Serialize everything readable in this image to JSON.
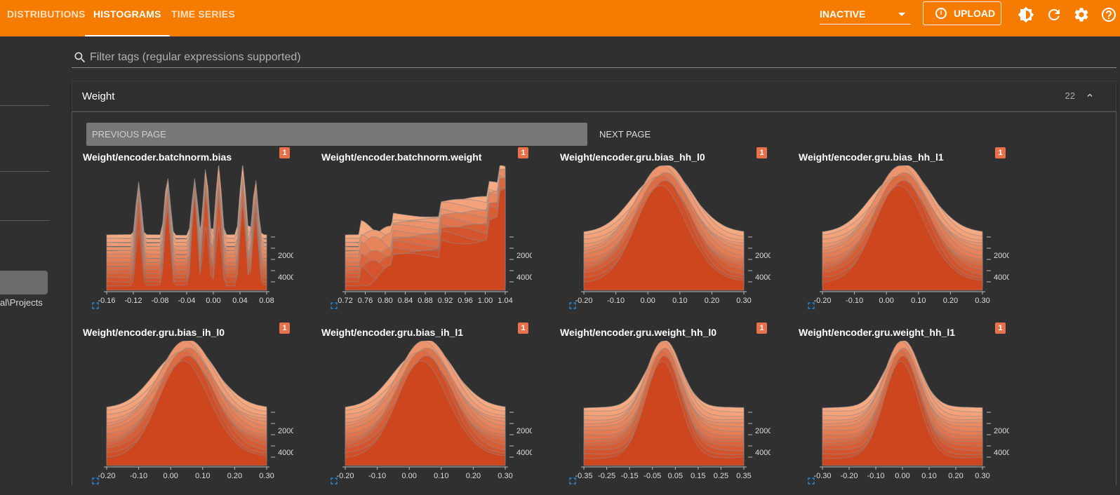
{
  "header": {
    "tabs": [
      {
        "label": "DISTRIBUTIONS",
        "active": false
      },
      {
        "label": "HISTOGRAMS",
        "active": true
      },
      {
        "label": "TIME SERIES",
        "active": false
      }
    ],
    "run_select": "INACTIVE",
    "upload_label": "UPLOAD",
    "icons": [
      "theme-toggle-icon",
      "refresh-icon",
      "settings-icon",
      "help-icon"
    ],
    "accent_color": "#f57c00"
  },
  "sidebar": {
    "path_text": "al\\Projects"
  },
  "filter": {
    "placeholder": "Filter tags (regular expressions supported)"
  },
  "panel": {
    "title": "Weight",
    "count": "22"
  },
  "pagination": {
    "prev_label": "PREVIOUS PAGE",
    "next_label": "NEXT PAGE"
  },
  "chart_data": [
    {
      "type": "area",
      "title": "Weight/encoder.batchnorm.bias",
      "badge": "1",
      "x_ticks": [
        "-0.16",
        "-0.12",
        "-0.08",
        "-0.04",
        "0.00",
        "0.04",
        "0.08"
      ],
      "y_ticks": [
        "2000",
        "4000"
      ],
      "shape": "multi-peak"
    },
    {
      "type": "area",
      "title": "Weight/encoder.batchnorm.weight",
      "badge": "1",
      "x_ticks": [
        "0.72",
        "0.76",
        "0.80",
        "0.84",
        "0.88",
        "0.92",
        "0.96",
        "1.00",
        "1.04"
      ],
      "y_ticks": [
        "2000",
        "4000"
      ],
      "shape": "step"
    },
    {
      "type": "area",
      "title": "Weight/encoder.gru.bias_hh_l0",
      "badge": "1",
      "x_ticks": [
        "-0.20",
        "-0.10",
        "0.00",
        "0.10",
        "0.20",
        "0.30"
      ],
      "y_ticks": [
        "2000",
        "4000"
      ],
      "shape": "bell"
    },
    {
      "type": "area",
      "title": "Weight/encoder.gru.bias_hh_l1",
      "badge": "1",
      "x_ticks": [
        "-0.20",
        "-0.10",
        "0.00",
        "0.10",
        "0.20",
        "0.30"
      ],
      "y_ticks": [
        "2000",
        "4000"
      ],
      "shape": "bell"
    },
    {
      "type": "area",
      "title": "Weight/encoder.gru.bias_ih_l0",
      "badge": "1",
      "x_ticks": [
        "-0.20",
        "-0.10",
        "0.00",
        "0.10",
        "0.20",
        "0.30"
      ],
      "y_ticks": [
        "2000",
        "4000"
      ],
      "shape": "bell"
    },
    {
      "type": "area",
      "title": "Weight/encoder.gru.bias_ih_l1",
      "badge": "1",
      "x_ticks": [
        "-0.20",
        "-0.10",
        "0.00",
        "0.10",
        "0.20",
        "0.30"
      ],
      "y_ticks": [
        "2000",
        "4000"
      ],
      "shape": "bell"
    },
    {
      "type": "area",
      "title": "Weight/encoder.gru.weight_hh_l0",
      "badge": "1",
      "x_ticks": [
        "-0.35",
        "-0.25",
        "-0.15",
        "-0.05",
        "0.05",
        "0.15",
        "0.25",
        "0.35"
      ],
      "y_ticks": [
        "2000",
        "4000"
      ],
      "shape": "narrow-bell"
    },
    {
      "type": "area",
      "title": "Weight/encoder.gru.weight_hh_l1",
      "badge": "1",
      "x_ticks": [
        "-0.30",
        "-0.20",
        "-0.10",
        "0.00",
        "0.10",
        "0.20",
        "0.30"
      ],
      "y_ticks": [
        "2000",
        "4000"
      ],
      "shape": "narrow-bell"
    }
  ]
}
